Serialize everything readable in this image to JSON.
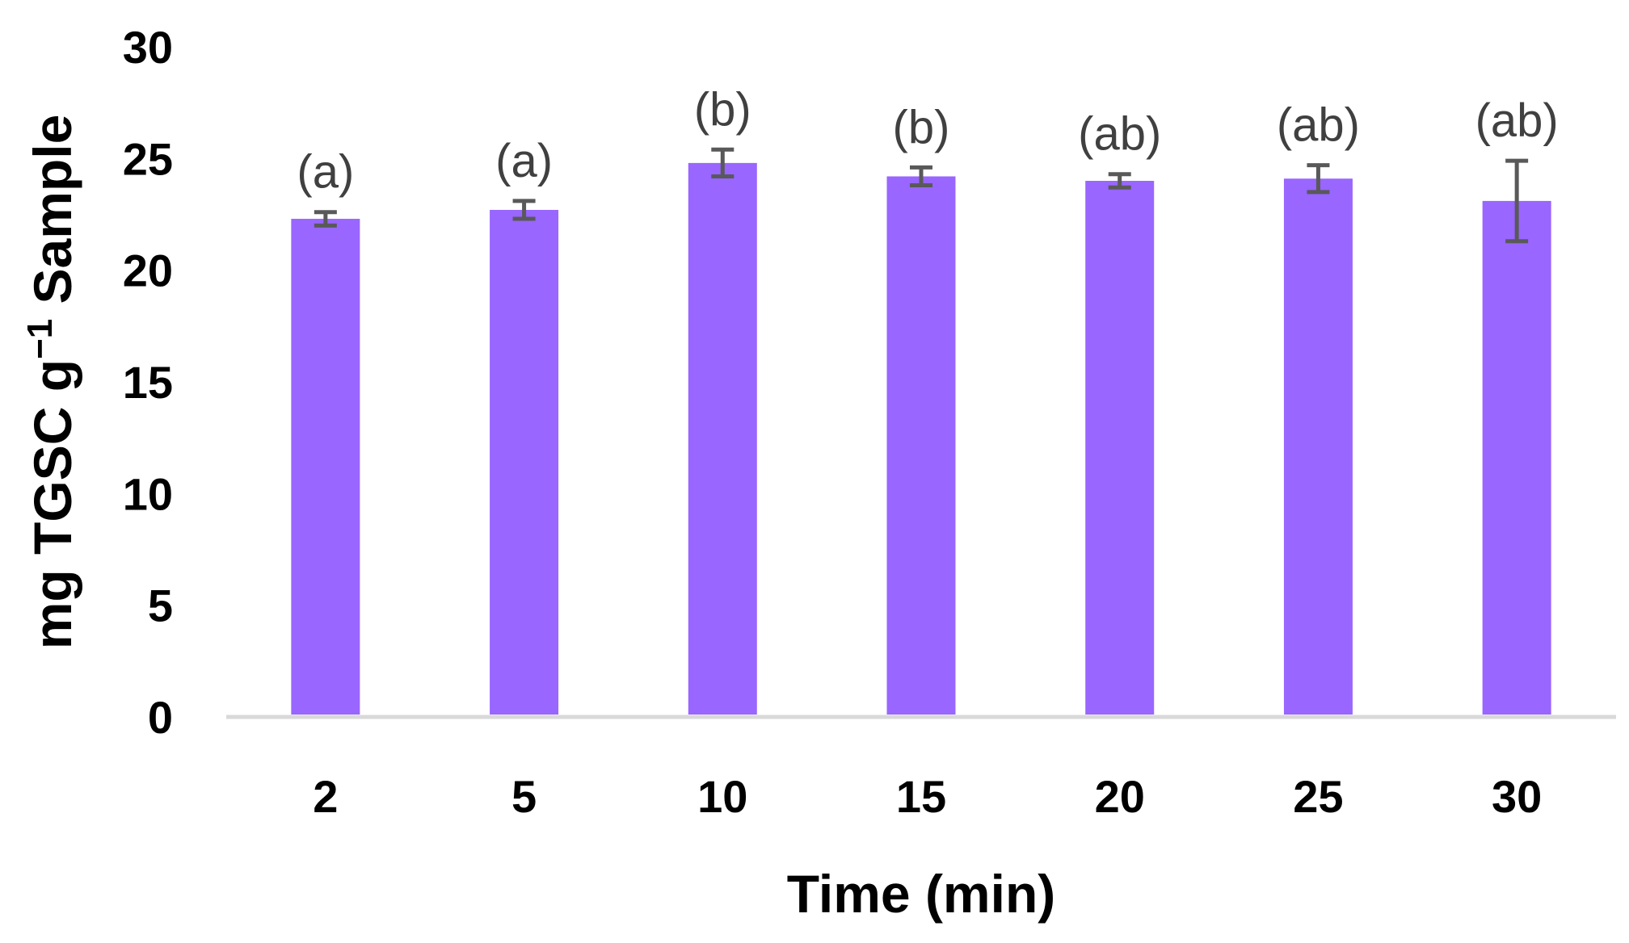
{
  "chart_data": {
    "type": "bar",
    "categories": [
      "2",
      "5",
      "10",
      "15",
      "20",
      "25",
      "30"
    ],
    "values": [
      22.3,
      22.7,
      24.8,
      24.2,
      24.0,
      24.1,
      23.1
    ],
    "errors": [
      0.3,
      0.4,
      0.6,
      0.4,
      0.3,
      0.6,
      1.8
    ],
    "significance_labels": [
      "(a)",
      "(a)",
      "(b)",
      "(b)",
      "(ab)",
      "(ab)",
      "(ab)"
    ],
    "xlabel": "Time (min)",
    "ylabel": "mg TGSC g",
    "ylabel_superscript": "−1",
    "ylabel_suffix": " Sample",
    "ylim": [
      0,
      30
    ],
    "yticks": [
      "0",
      "5",
      "10",
      "15",
      "20",
      "25",
      "30"
    ],
    "grid": false,
    "legend": "none",
    "colors": {
      "bar": "#9966ff",
      "error_bar": "#595959",
      "axis": "#d9d9d9"
    }
  }
}
